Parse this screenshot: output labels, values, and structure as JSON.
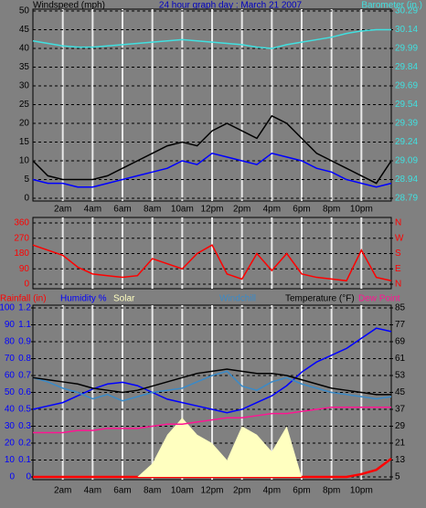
{
  "title": "24 hour graph day : March 21 2007",
  "chart_data": [
    {
      "type": "line",
      "ylabel": "Windspeed (mph)",
      "y2label": "Barometer (in.)",
      "x": [
        0,
        1,
        2,
        3,
        4,
        5,
        6,
        7,
        8,
        9,
        10,
        11,
        12,
        13,
        14,
        15,
        16,
        17,
        18,
        19,
        20,
        21,
        22,
        23,
        24
      ],
      "xlim": [
        0,
        24
      ],
      "xticks": [
        {
          "value": 2,
          "label": "2am"
        },
        {
          "value": 4,
          "label": "4am"
        },
        {
          "value": 6,
          "label": "6am"
        },
        {
          "value": 8,
          "label": "8am"
        },
        {
          "value": 10,
          "label": "10am"
        },
        {
          "value": 12,
          "label": "12pm"
        },
        {
          "value": 14,
          "label": "2pm"
        },
        {
          "value": 16,
          "label": "4pm"
        },
        {
          "value": 18,
          "label": "6pm"
        },
        {
          "value": 20,
          "label": "8pm"
        },
        {
          "value": 22,
          "label": "10pm"
        }
      ],
      "ylim": [
        0,
        50
      ],
      "yticks": [
        0,
        5,
        10,
        15,
        20,
        25,
        30,
        35,
        40,
        45,
        50
      ],
      "y2lim": [
        28.79,
        30.29
      ],
      "y2ticks": [
        28.79,
        28.94,
        29.09,
        29.24,
        29.39,
        29.54,
        29.69,
        29.84,
        29.99,
        30.14,
        30.29
      ],
      "grid": true,
      "series": [
        {
          "color": "#000000",
          "values": [
            10,
            6,
            5,
            5,
            5,
            6,
            8,
            10,
            12,
            14,
            15,
            14,
            18,
            20,
            18,
            16,
            22,
            20,
            16,
            12,
            10,
            8,
            6,
            4,
            10
          ]
        },
        {
          "color": "#0000ff",
          "values": [
            5,
            4,
            4,
            3,
            3,
            4,
            5,
            6,
            7,
            8,
            10,
            9,
            12,
            11,
            10,
            9,
            12,
            11,
            10,
            8,
            7,
            5,
            4,
            3,
            4
          ]
        },
        {
          "name": "Barometer (in.)",
          "color": "#40e0e0",
          "axis": "y2",
          "values": [
            30.05,
            30.03,
            30.01,
            30.0,
            30.0,
            30.01,
            30.02,
            30.03,
            30.04,
            30.05,
            30.06,
            30.05,
            30.04,
            30.03,
            30.02,
            30.0,
            29.99,
            30.02,
            30.04,
            30.06,
            30.08,
            30.11,
            30.13,
            30.14,
            30.14
          ]
        }
      ]
    },
    {
      "type": "line",
      "x": [
        0,
        1,
        2,
        3,
        4,
        5,
        6,
        7,
        8,
        9,
        10,
        11,
        12,
        13,
        14,
        15,
        16,
        17,
        18,
        19,
        20,
        21,
        22,
        23,
        24
      ],
      "xlim": [
        0,
        24
      ],
      "xticks": [
        2,
        4,
        6,
        8,
        10,
        12,
        14,
        16,
        18,
        20,
        22
      ],
      "ylim": [
        0,
        360
      ],
      "yticks": [
        0,
        90,
        180,
        270,
        360
      ],
      "y2lim": [
        0,
        360
      ],
      "y2ticks": [
        {
          "value": 0,
          "label": "N"
        },
        {
          "value": 90,
          "label": "E"
        },
        {
          "value": 180,
          "label": "S"
        },
        {
          "value": 270,
          "label": "W"
        },
        {
          "value": 360,
          "label": "N"
        }
      ],
      "grid": true,
      "series": [
        {
          "color": "#ff0000",
          "values": [
            230,
            200,
            170,
            100,
            60,
            50,
            40,
            50,
            150,
            120,
            90,
            180,
            230,
            60,
            30,
            180,
            80,
            180,
            60,
            40,
            30,
            20,
            200,
            40,
            20
          ]
        }
      ]
    },
    {
      "type": "line",
      "x": [
        0,
        1,
        2,
        3,
        4,
        5,
        6,
        7,
        8,
        9,
        10,
        11,
        12,
        13,
        14,
        15,
        16,
        17,
        18,
        19,
        20,
        21,
        22,
        23,
        24
      ],
      "xlim": [
        0,
        24
      ],
      "xticks": [
        {
          "value": 2,
          "label": "2am"
        },
        {
          "value": 4,
          "label": "4am"
        },
        {
          "value": 6,
          "label": "6am"
        },
        {
          "value": 8,
          "label": "8am"
        },
        {
          "value": 10,
          "label": "10am"
        },
        {
          "value": 12,
          "label": "12pm"
        },
        {
          "value": 14,
          "label": "2pm"
        },
        {
          "value": 16,
          "label": "4pm"
        },
        {
          "value": 18,
          "label": "6pm"
        },
        {
          "value": 20,
          "label": "8pm"
        },
        {
          "value": 22,
          "label": "10pm"
        }
      ],
      "ylim": [
        0,
        100
      ],
      "yticks": [
        0,
        10,
        20,
        30,
        40,
        50,
        60,
        70,
        80,
        90,
        100
      ],
      "y3lim": [
        0,
        1.2
      ],
      "y3ticks": [
        {
          "value": 0,
          "label": "0"
        },
        {
          "value": 0.12,
          "label": "0.1"
        },
        {
          "value": 0.24,
          "label": "0.2"
        },
        {
          "value": 0.36,
          "label": "0.3"
        },
        {
          "value": 0.48,
          "label": "0.5"
        },
        {
          "value": 0.6,
          "label": "0.6"
        },
        {
          "value": 0.72,
          "label": "0.7"
        },
        {
          "value": 0.84,
          "label": "0.8"
        },
        {
          "value": 0.96,
          "label": "0.9"
        },
        {
          "value": 1.08,
          "label": "1.1"
        },
        {
          "value": 1.2,
          "label": "1.2"
        }
      ],
      "y2lim": [
        5,
        85
      ],
      "y2ticks": [
        5,
        13,
        21,
        29,
        37,
        45,
        53,
        61,
        69,
        77,
        85
      ],
      "grid": true,
      "series": [
        {
          "name": "Rainfall (in)",
          "color": "#ff0000",
          "axis": "y3",
          "values": [
            0,
            0,
            0,
            0,
            0,
            0,
            0,
            0,
            0,
            0,
            0,
            0,
            0,
            0,
            0,
            0,
            0,
            0,
            0,
            0,
            0,
            0,
            0.02,
            0.05,
            0.13
          ]
        },
        {
          "name": "Humidity %",
          "color": "#0000ff",
          "values": [
            40,
            42,
            44,
            48,
            52,
            55,
            56,
            54,
            50,
            46,
            44,
            42,
            40,
            38,
            40,
            44,
            48,
            54,
            62,
            68,
            72,
            76,
            82,
            88,
            86
          ]
        },
        {
          "name": "Solar",
          "color": "#ffffc0",
          "area": true,
          "values": [
            0,
            0,
            0,
            0,
            0,
            0,
            0,
            0,
            8,
            25,
            35,
            25,
            20,
            10,
            30,
            25,
            15,
            30,
            0,
            0,
            0,
            0,
            0,
            0,
            0
          ]
        },
        {
          "name": "Windchill",
          "color": "#3a8ac8",
          "axis": "y2",
          "values": [
            52,
            50,
            47,
            45,
            42,
            44,
            41,
            43,
            45,
            46,
            47,
            50,
            53,
            55,
            48,
            46,
            50,
            52,
            49,
            47,
            45,
            44,
            43,
            42,
            43
          ]
        },
        {
          "name": "Temperature (°F)",
          "color": "#000000",
          "axis": "y2",
          "values": [
            52,
            51,
            50,
            49,
            47,
            46,
            45,
            46,
            48,
            50,
            52,
            54,
            55,
            56,
            55,
            54,
            54,
            53,
            51,
            49,
            47,
            46,
            45,
            44,
            44
          ]
        },
        {
          "name": "Dew Point",
          "color": "#ff1493",
          "axis": "y2",
          "values": [
            26,
            26,
            26,
            27,
            27,
            28,
            28,
            28,
            29,
            30,
            30,
            31,
            32,
            33,
            33,
            34,
            35,
            35,
            36,
            37,
            38,
            38,
            38,
            38,
            38
          ]
        }
      ]
    }
  ]
}
